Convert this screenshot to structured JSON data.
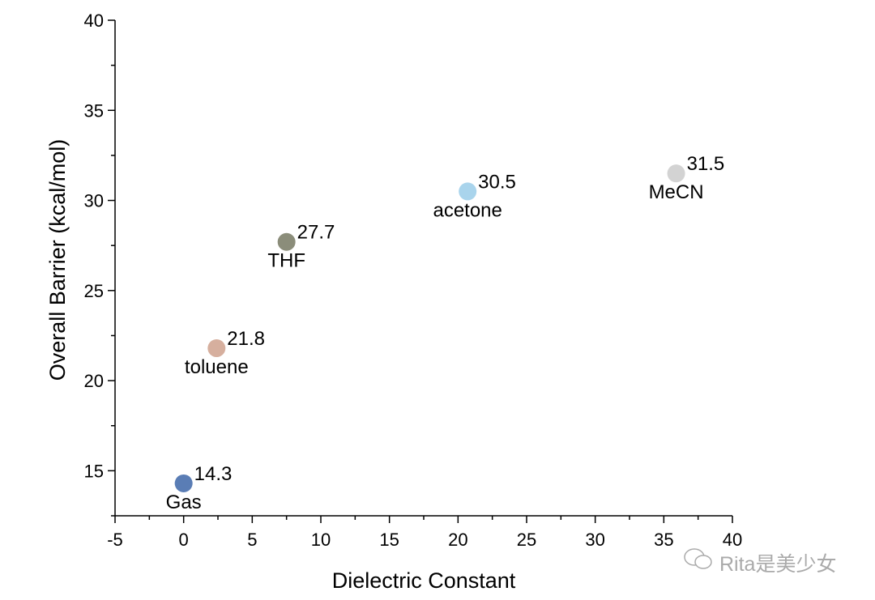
{
  "chart_data": {
    "type": "scatter",
    "title": "",
    "xlabel": "Dielectric Constant",
    "ylabel": "Overall Barrier (kcal/mol)",
    "xlim": [
      -5,
      40
    ],
    "ylim": [
      12.5,
      40
    ],
    "xticks": [
      -5,
      0,
      5,
      10,
      15,
      20,
      25,
      30,
      35,
      40
    ],
    "yticks": [
      15,
      20,
      25,
      30,
      35,
      40
    ],
    "grid": false,
    "points": [
      {
        "name": "Gas",
        "x": 0,
        "y": 14.3,
        "value_label": "14.3",
        "color": "#5a7db5"
      },
      {
        "name": "toluene",
        "x": 2.4,
        "y": 21.8,
        "value_label": "21.8",
        "color": "#d6af9e"
      },
      {
        "name": "THF",
        "x": 7.5,
        "y": 27.7,
        "value_label": "27.7",
        "color": "#8b8d7a"
      },
      {
        "name": "acetone",
        "x": 20.7,
        "y": 30.5,
        "value_label": "30.5",
        "color": "#a9d4ec"
      },
      {
        "name": "MeCN",
        "x": 35.9,
        "y": 31.5,
        "value_label": "31.5",
        "color": "#d3d3d3"
      }
    ]
  },
  "watermark": "Rita是美少女"
}
